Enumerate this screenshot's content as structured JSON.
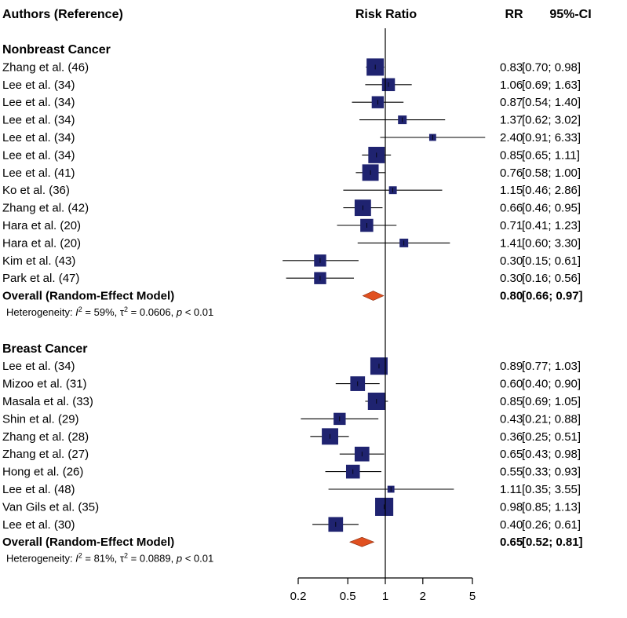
{
  "chart_data": {
    "type": "forest",
    "headers": {
      "study": "Authors (Reference)",
      "plot": "Risk Ratio",
      "estimate": "RR",
      "ci": "95%-CI"
    },
    "x_scale": "log",
    "xlim": [
      0.2,
      5
    ],
    "x_ticks": [
      0.2,
      0.5,
      1,
      2,
      5
    ],
    "x_tick_labels": [
      "0.2",
      "0.5",
      "1",
      "2",
      "5"
    ],
    "reference_line": 1,
    "colors": {
      "box": "#1f2370",
      "diamond": "#e05020",
      "line": "#000000"
    },
    "groups": [
      {
        "name": "Nonbreast Cancer",
        "studies": [
          {
            "label": "Zhang  et al. (46)",
            "rr": 0.83,
            "lo": 0.7,
            "hi": 0.98,
            "rr_text": "0.83",
            "ci_text": "[0.70; 0.98]",
            "weight": 1.0
          },
          {
            "label": "Lee  et al. (34)",
            "rr": 1.06,
            "lo": 0.69,
            "hi": 1.63,
            "rr_text": "1.06",
            "ci_text": "[0.69; 1.63]",
            "weight": 0.75
          },
          {
            "label": "Lee  et al. (34)",
            "rr": 0.87,
            "lo": 0.54,
            "hi": 1.4,
            "rr_text": "0.87",
            "ci_text": "[0.54; 1.40]",
            "weight": 0.7
          },
          {
            "label": "Lee  et al. (34)",
            "rr": 1.37,
            "lo": 0.62,
            "hi": 3.02,
            "rr_text": "1.37",
            "ci_text": "[0.62; 3.02]",
            "weight": 0.5
          },
          {
            "label": "Lee  et al. (34)",
            "rr": 2.4,
            "lo": 0.91,
            "hi": 6.33,
            "rr_text": "2.40",
            "ci_text": "[0.91; 6.33]",
            "weight": 0.4
          },
          {
            "label": "Lee  et al. (34)",
            "rr": 0.85,
            "lo": 0.65,
            "hi": 1.11,
            "rr_text": "0.85",
            "ci_text": "[0.65; 1.11]",
            "weight": 0.95
          },
          {
            "label": "Lee  et al. (41)",
            "rr": 0.76,
            "lo": 0.58,
            "hi": 1.0,
            "rr_text": "0.76",
            "ci_text": "[0.58; 1.00]",
            "weight": 0.95
          },
          {
            "label": "Ko  et al. (36)",
            "rr": 1.15,
            "lo": 0.46,
            "hi": 2.86,
            "rr_text": "1.15",
            "ci_text": "[0.46; 2.86]",
            "weight": 0.45
          },
          {
            "label": "Zhang  et al. (42)",
            "rr": 0.66,
            "lo": 0.46,
            "hi": 0.95,
            "rr_text": "0.66",
            "ci_text": "[0.46; 0.95]",
            "weight": 0.95
          },
          {
            "label": "Hara  et al. (20)",
            "rr": 0.71,
            "lo": 0.41,
            "hi": 1.23,
            "rr_text": "0.71",
            "ci_text": "[0.41; 1.23]",
            "weight": 0.75
          },
          {
            "label": "Hara  et al. (20)",
            "rr": 1.41,
            "lo": 0.6,
            "hi": 3.3,
            "rr_text": "1.41",
            "ci_text": "[0.60; 3.30]",
            "weight": 0.5
          },
          {
            "label": "Kim  et al. (43)",
            "rr": 0.3,
            "lo": 0.15,
            "hi": 0.61,
            "rr_text": "0.30",
            "ci_text": "[0.15; 0.61]",
            "weight": 0.7
          },
          {
            "label": "Park  et al. (47)",
            "rr": 0.3,
            "lo": 0.16,
            "hi": 0.56,
            "rr_text": "0.30",
            "ci_text": "[0.16; 0.56]",
            "weight": 0.7
          }
        ],
        "overall": {
          "label": "Overall (Random-Effect Model)",
          "rr": 0.8,
          "lo": 0.66,
          "hi": 0.97,
          "rr_text": "0.80",
          "ci_text": "[0.66; 0.97]"
        },
        "heterogeneity": {
          "prefix": "Heterogeneity: ",
          "i2_symbol": "I",
          "i2_value": " = 59%, ",
          "tau_symbol": "τ",
          "tau_value": " = 0.0606, ",
          "p_symbol": "p",
          "p_value": " < 0.01",
          "sup": "2"
        }
      },
      {
        "name": "Breast Cancer",
        "studies": [
          {
            "label": "Lee  et al. (34)",
            "rr": 0.89,
            "lo": 0.77,
            "hi": 1.03,
            "rr_text": "0.89",
            "ci_text": "[0.77; 1.03]",
            "weight": 1.0
          },
          {
            "label": "Mizoo  et al. (31)",
            "rr": 0.6,
            "lo": 0.4,
            "hi": 0.9,
            "rr_text": "0.60",
            "ci_text": "[0.40; 0.90]",
            "weight": 0.85
          },
          {
            "label": "Masala  et al. (33)",
            "rr": 0.85,
            "lo": 0.69,
            "hi": 1.05,
            "rr_text": "0.85",
            "ci_text": "[0.69; 1.05]",
            "weight": 1.0
          },
          {
            "label": "Shin  et al. (29)",
            "rr": 0.43,
            "lo": 0.21,
            "hi": 0.88,
            "rr_text": "0.43",
            "ci_text": "[0.21; 0.88]",
            "weight": 0.7
          },
          {
            "label": "Zhang  et al. (28)",
            "rr": 0.36,
            "lo": 0.25,
            "hi": 0.51,
            "rr_text": "0.36",
            "ci_text": "[0.25; 0.51]",
            "weight": 0.95
          },
          {
            "label": "Zhang  et al. (27)",
            "rr": 0.65,
            "lo": 0.43,
            "hi": 0.98,
            "rr_text": "0.65",
            "ci_text": "[0.43; 0.98]",
            "weight": 0.85
          },
          {
            "label": "Hong  et al. (26)",
            "rr": 0.55,
            "lo": 0.33,
            "hi": 0.93,
            "rr_text": "0.55",
            "ci_text": "[0.33; 0.93]",
            "weight": 0.8
          },
          {
            "label": "Lee  et al. (48)",
            "rr": 1.11,
            "lo": 0.35,
            "hi": 3.55,
            "rr_text": "1.11",
            "ci_text": "[0.35; 3.55]",
            "weight": 0.4
          },
          {
            "label": "Van Gils  et al. (35)",
            "rr": 0.98,
            "lo": 0.85,
            "hi": 1.13,
            "rr_text": "0.98",
            "ci_text": "[0.85; 1.13]",
            "weight": 1.05
          },
          {
            "label": "Lee  et al. (30)",
            "rr": 0.4,
            "lo": 0.26,
            "hi": 0.61,
            "rr_text": "0.40",
            "ci_text": "[0.26; 0.61]",
            "weight": 0.85
          }
        ],
        "overall": {
          "label": "Overall (Random-Effect Model)",
          "rr": 0.65,
          "lo": 0.52,
          "hi": 0.81,
          "rr_text": "0.65",
          "ci_text": "[0.52; 0.81]"
        },
        "heterogeneity": {
          "prefix": "Heterogeneity: ",
          "i2_symbol": "I",
          "i2_value": " = 81%, ",
          "tau_symbol": "τ",
          "tau_value": " = 0.0889, ",
          "p_symbol": "p",
          "p_value": " < 0.01",
          "sup": "2"
        }
      }
    ]
  }
}
